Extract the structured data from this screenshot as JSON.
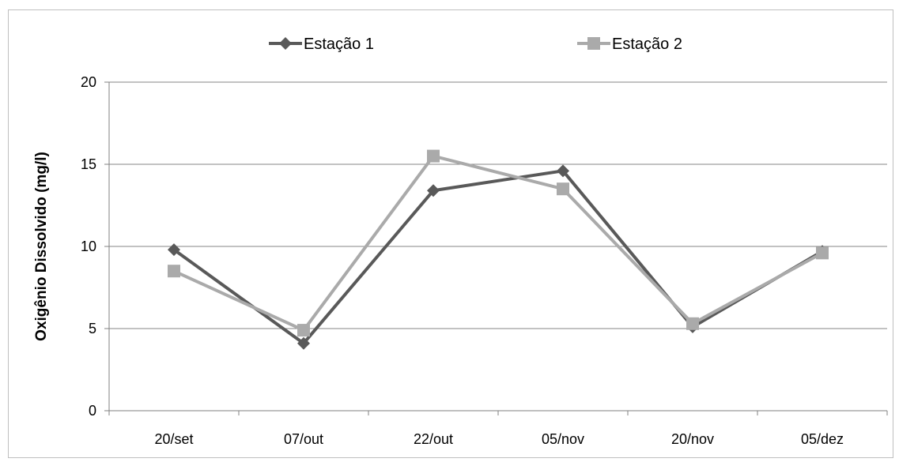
{
  "chart_data": {
    "type": "line",
    "categories": [
      "20/set",
      "07/out",
      "22/out",
      "05/nov",
      "20/nov",
      "05/dez"
    ],
    "series": [
      {
        "name": "Estação 1",
        "values": [
          9.8,
          4.1,
          13.4,
          14.6,
          5.1,
          9.7
        ],
        "color": "#595959",
        "marker": "diamond"
      },
      {
        "name": "Estação 2",
        "values": [
          8.5,
          4.9,
          15.5,
          13.5,
          5.3,
          9.6
        ],
        "color": "#aaaaaa",
        "marker": "square"
      }
    ],
    "ylabel": "Oxigênio Dissolvido (mg/l)",
    "ylim": [
      0,
      20
    ],
    "yticks": [
      "0",
      "5",
      "10",
      "15",
      "20"
    ],
    "grid": "horizontal",
    "legend_position": "top"
  }
}
